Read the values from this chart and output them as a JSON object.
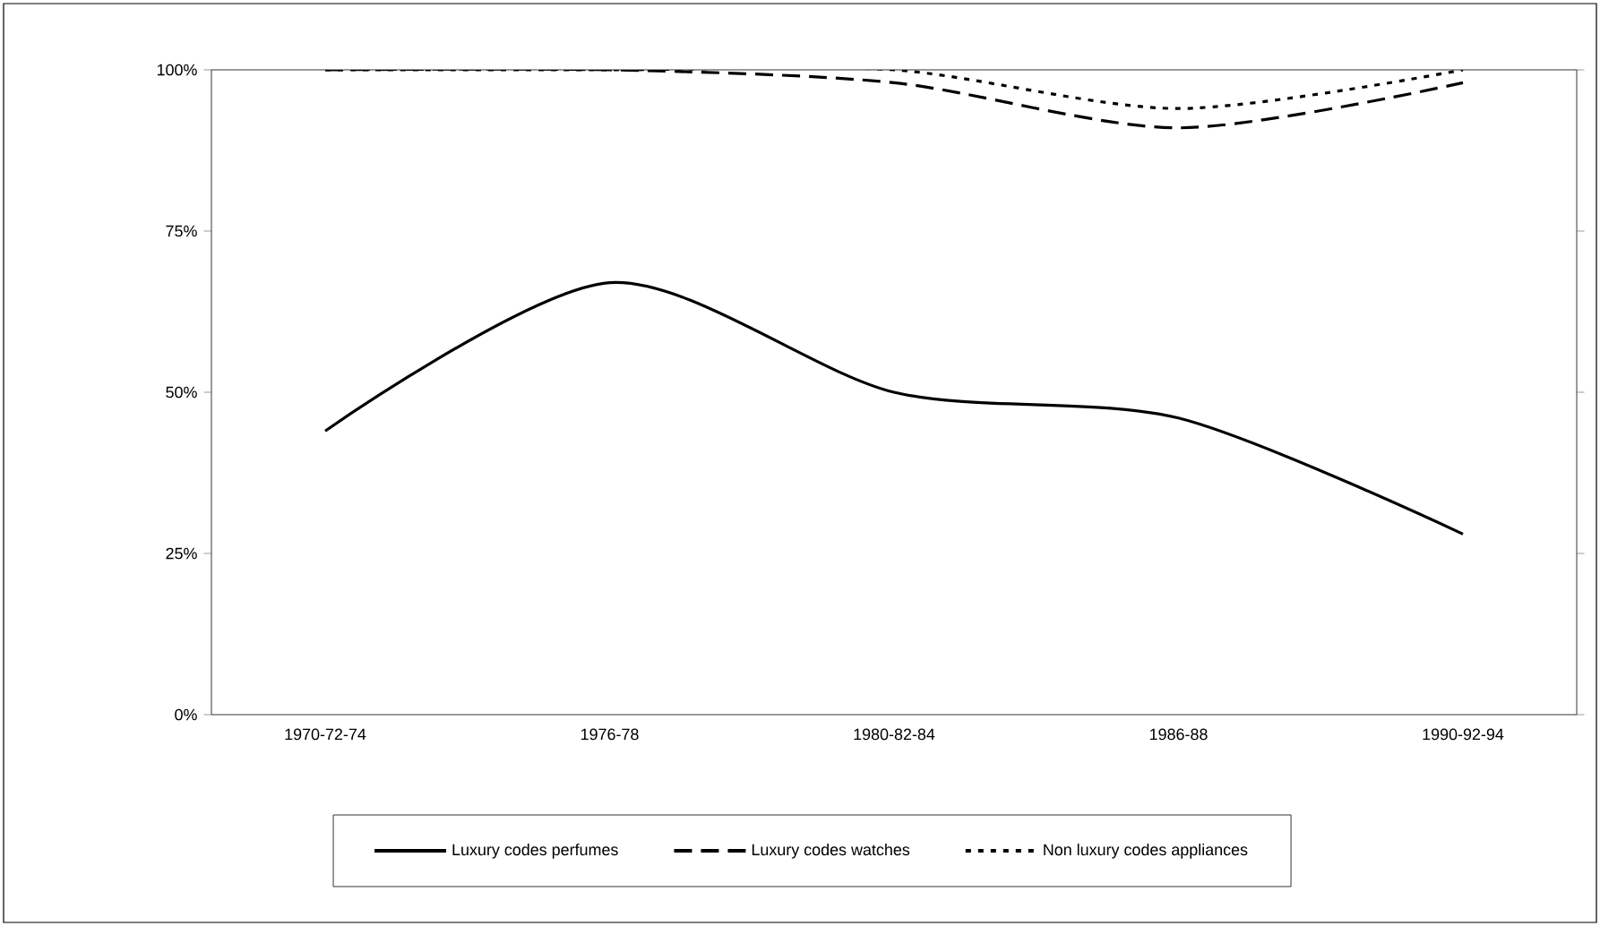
{
  "chart_data": {
    "type": "line",
    "categories": [
      "1970-72-74",
      "1976-78",
      "1980-82-84",
      "1986-88",
      "1990-92-94"
    ],
    "series": [
      {
        "name": "Luxury codes perfumes",
        "color": "#000000",
        "line_style": "solid",
        "values": [
          44,
          67,
          50,
          46,
          28
        ]
      },
      {
        "name": "Luxury codes watches",
        "color": "#000000",
        "line_style": "dashed",
        "values": [
          100,
          100,
          98,
          91,
          98
        ]
      },
      {
        "name": "Non luxury codes appliances",
        "color": "#000000",
        "line_style": "dotted",
        "values": [
          100,
          100,
          100,
          94,
          100
        ]
      }
    ],
    "ylim": [
      0,
      100
    ],
    "yticks": [
      {
        "value": 0,
        "label": "0%"
      },
      {
        "value": 25,
        "label": "25%"
      },
      {
        "value": 50,
        "label": "50%"
      },
      {
        "value": 75,
        "label": "75%"
      },
      {
        "value": 100,
        "label": "100%"
      }
    ],
    "grid": false,
    "legend": "bottom",
    "marker": "none"
  }
}
